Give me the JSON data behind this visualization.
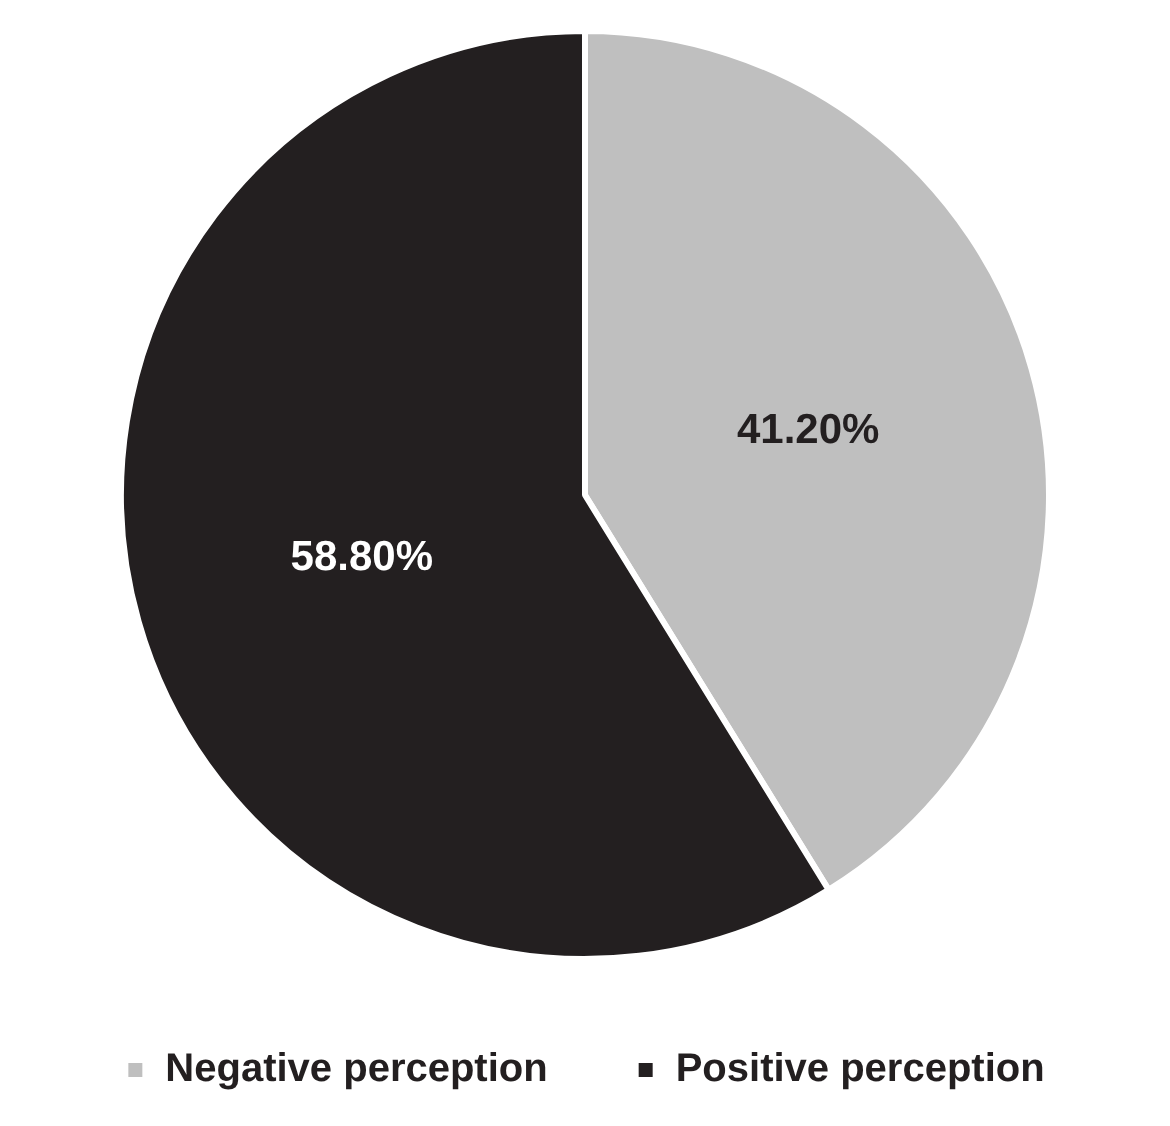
{
  "chart_data": {
    "type": "pie",
    "categories": [
      "Negative perception",
      "Positive perception"
    ],
    "values": [
      41.2,
      58.8
    ],
    "colors": [
      "#bfbfbf",
      "#231f20"
    ],
    "value_labels": [
      "41.20%",
      "58.80%"
    ],
    "legend": "bottom"
  }
}
